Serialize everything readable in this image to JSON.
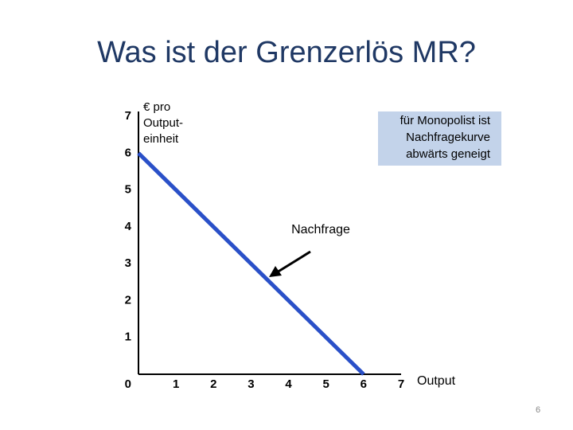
{
  "chart_data": {
    "type": "line",
    "title": "Was ist der Grenzerlös MR?",
    "ylabel": [
      "€ pro",
      "Output-",
      "einheit"
    ],
    "xlabel": "Output",
    "x": [
      0,
      6
    ],
    "series": [
      {
        "name": "Nachfrage",
        "color": "#2a50c8",
        "values": [
          6,
          0
        ]
      }
    ],
    "xlim": [
      0,
      7
    ],
    "xticks": [
      1,
      2,
      3,
      4,
      5,
      6,
      7
    ],
    "ylim": [
      0,
      7
    ],
    "yticks": [
      0,
      1,
      2,
      3,
      4,
      5,
      6,
      7
    ],
    "annotation": [
      "für Monopolist ist",
      "Nachfragekurve",
      "abwärts geneigt"
    ],
    "page_number": "6"
  }
}
